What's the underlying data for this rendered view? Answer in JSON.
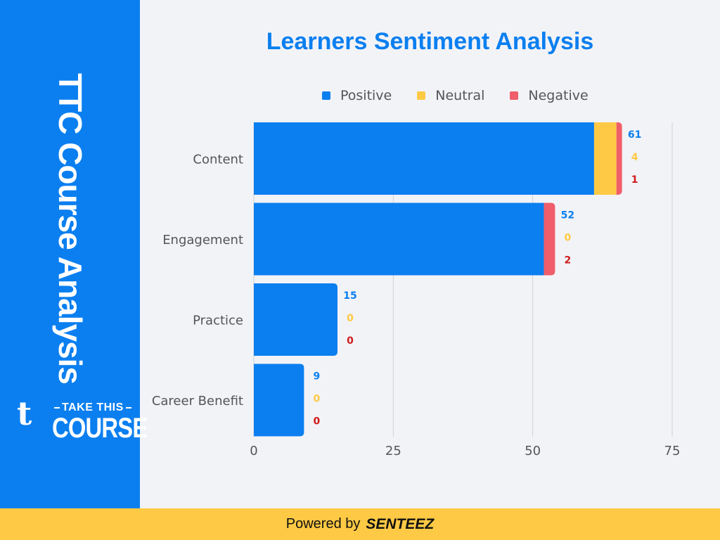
{
  "sidebar": {
    "vertical_title": "TTC Course Analysis",
    "logo_mark": "t",
    "logo_take": "TAKE THIS",
    "logo_course": "COURSE"
  },
  "footer": {
    "powered_by": "Powered by",
    "brand": "SENTEEZ"
  },
  "colors": {
    "positive": "#0b7ff0",
    "neutral": "#fec944",
    "negative": "#ef5e6a",
    "neg_label": "#d01b1b"
  },
  "chart_data": {
    "type": "bar",
    "orientation": "horizontal",
    "stacked": true,
    "title": "Learners Sentiment Analysis",
    "categories": [
      "Content",
      "Engagement",
      "Practice",
      "Career Benefit"
    ],
    "series": [
      {
        "name": "Positive",
        "values": [
          61,
          52,
          15,
          9
        ]
      },
      {
        "name": "Neutral",
        "values": [
          4,
          0,
          0,
          0
        ]
      },
      {
        "name": "Negative",
        "values": [
          1,
          2,
          0,
          0
        ]
      }
    ],
    "xlim": [
      0,
      75
    ],
    "xticks": [
      0,
      25,
      50,
      75
    ],
    "xlabel": "",
    "ylabel": "",
    "legend_position": "top",
    "grid": true
  }
}
